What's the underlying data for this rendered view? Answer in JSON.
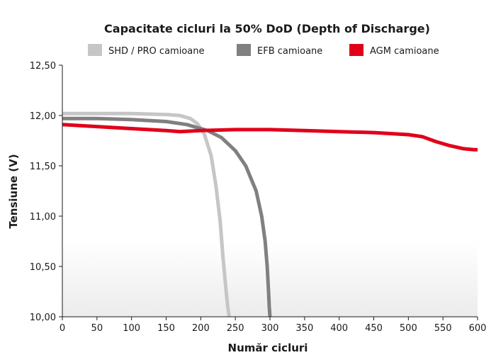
{
  "chart_data": {
    "type": "line",
    "title": "Capacitate cicluri la 50% DoD (Depth of Discharge)",
    "xlabel": "Număr cicluri",
    "ylabel": "Tensiune (V)",
    "xlim": [
      0,
      600
    ],
    "ylim": [
      10.0,
      12.5
    ],
    "x_ticks": [
      0,
      50,
      100,
      150,
      200,
      250,
      300,
      350,
      400,
      450,
      500,
      550,
      600
    ],
    "x_tick_labels": [
      "0",
      "50",
      "100",
      "150",
      "200",
      "250",
      "300",
      "350",
      "400",
      "450",
      "500",
      "550",
      "600"
    ],
    "y_ticks": [
      10.0,
      10.5,
      11.0,
      11.5,
      12.0,
      12.5
    ],
    "y_tick_labels": [
      "10,00",
      "10,50",
      "11,00",
      "11,50",
      "12,00",
      "12,50"
    ],
    "grid": false,
    "legend_position": "top",
    "series": [
      {
        "name": "SHD / PRO camioane",
        "color": "#c6c6c6",
        "x": [
          0,
          50,
          100,
          150,
          170,
          185,
          195,
          205,
          215,
          222,
          228,
          232,
          236,
          239,
          241
        ],
        "y": [
          12.02,
          12.02,
          12.02,
          12.01,
          12.0,
          11.97,
          11.92,
          11.82,
          11.6,
          11.3,
          10.95,
          10.6,
          10.3,
          10.1,
          10.0
        ]
      },
      {
        "name": "EFB camioane",
        "color": "#808080",
        "x": [
          0,
          50,
          100,
          150,
          180,
          210,
          230,
          250,
          265,
          280,
          288,
          293,
          296,
          298,
          299,
          300
        ],
        "y": [
          11.97,
          11.97,
          11.96,
          11.94,
          11.91,
          11.85,
          11.78,
          11.65,
          11.5,
          11.25,
          11.0,
          10.75,
          10.5,
          10.25,
          10.1,
          10.0
        ]
      },
      {
        "name": "AGM camioane",
        "color": "#e1001a",
        "x": [
          0,
          50,
          100,
          150,
          170,
          200,
          250,
          300,
          350,
          400,
          450,
          500,
          520,
          540,
          560,
          580,
          595,
          600
        ],
        "y": [
          11.91,
          11.89,
          11.87,
          11.85,
          11.84,
          11.85,
          11.86,
          11.86,
          11.85,
          11.84,
          11.83,
          11.81,
          11.79,
          11.74,
          11.7,
          11.67,
          11.66,
          11.66
        ]
      }
    ]
  }
}
